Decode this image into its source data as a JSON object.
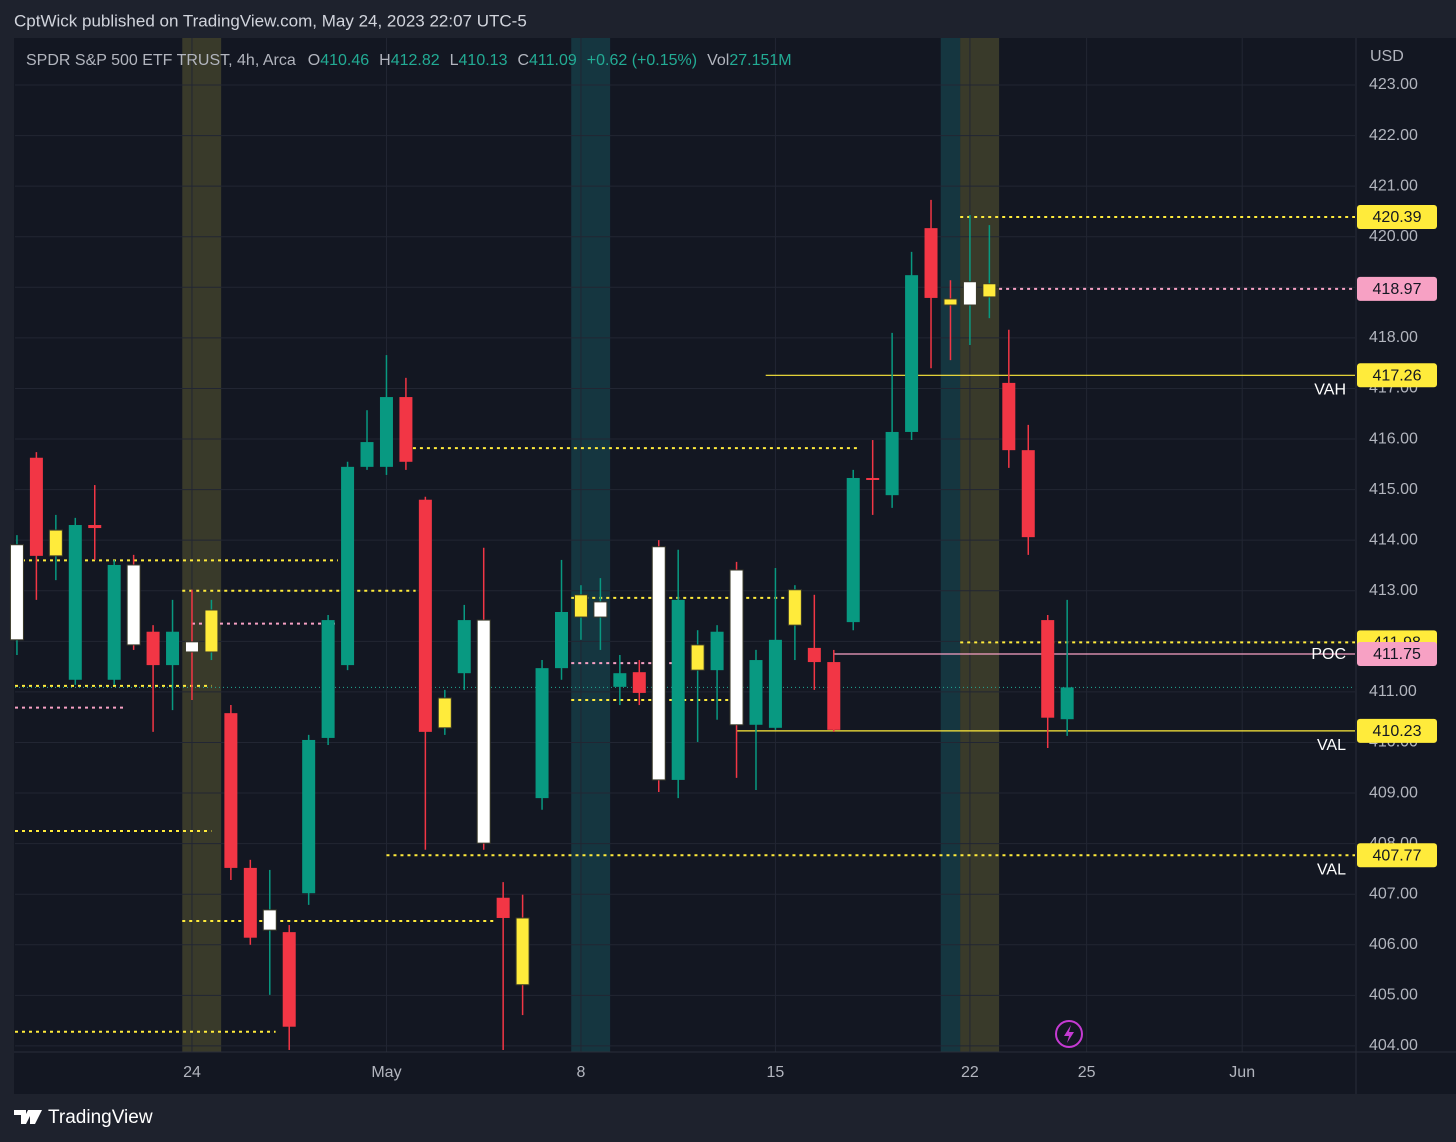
{
  "chart_data": {
    "type": "candlestick",
    "published": "CptWick published on TradingView.com, May 24, 2023 22:07 UTC-5",
    "symbol": "SPDR S&P 500 ETF TRUST, 4h, Arca",
    "fields": [
      {
        "label": "O",
        "value": 410.46
      },
      {
        "label": "H",
        "value": 412.82
      },
      {
        "label": "L",
        "value": 410.13
      },
      {
        "label": "C",
        "value": 411.09
      }
    ],
    "change": "+0.62 (+0.15%)",
    "volume_label": "Vol",
    "volume": "27.151M",
    "currency": "USD",
    "brand": "TradingView",
    "open": [
      412.03,
      415.63,
      413.69,
      411.24,
      414.3,
      411.24,
      413.51,
      412.19,
      411.53,
      411.99,
      411.79,
      410.58,
      407.52,
      406.29,
      406.25,
      407.02,
      410.09,
      411.53,
      415.45,
      415.45,
      416.83,
      414.8,
      410.29,
      411.37,
      412.42,
      406.93,
      406.53,
      408.9,
      411.47,
      412.48,
      412.48,
      411.1,
      411.39,
      413.87,
      409.26,
      411.43,
      411.43,
      413.41,
      410.35,
      410.29,
      412.32,
      411.87,
      411.59,
      412.38,
      415.23,
      414.89,
      416.14,
      420.17,
      418.77,
      418.65,
      418.81,
      417.11,
      415.78,
      412.42,
      410.46
    ],
    "high": [
      414.1,
      415.74,
      414.5,
      414.44,
      415.09,
      413.61,
      413.71,
      412.32,
      412.82,
      413.02,
      412.82,
      410.74,
      407.68,
      407.48,
      406.39,
      410.15,
      412.52,
      415.55,
      416.57,
      417.66,
      417.21,
      414.86,
      411.04,
      412.72,
      413.85,
      407.24,
      406.99,
      411.63,
      413.61,
      413.11,
      413.25,
      411.73,
      411.63,
      414.0,
      413.81,
      412.22,
      412.32,
      413.57,
      411.83,
      413.45,
      413.11,
      412.92,
      411.83,
      415.39,
      415.98,
      418.1,
      419.7,
      420.73,
      419.14,
      420.43,
      420.23,
      418.16,
      416.28,
      412.52,
      412.82
    ],
    "low": [
      411.73,
      412.82,
      413.21,
      411.14,
      413.61,
      411.14,
      411.83,
      410.21,
      410.64,
      410.84,
      411.63,
      407.28,
      406.0,
      405.01,
      403.92,
      406.79,
      409.95,
      411.43,
      415.39,
      415.29,
      415.39,
      407.88,
      410.15,
      411.04,
      407.88,
      403.92,
      404.61,
      408.67,
      411.24,
      412.03,
      411.83,
      410.74,
      410.74,
      409.02,
      408.9,
      410.01,
      410.45,
      409.3,
      409.06,
      410.25,
      411.63,
      411.04,
      410.21,
      412.22,
      414.5,
      414.64,
      415.98,
      417.4,
      417.56,
      417.86,
      418.39,
      415.43,
      413.71,
      409.89,
      410.13
    ],
    "close": [
      413.91,
      413.69,
      414.2,
      414.3,
      414.24,
      413.51,
      411.93,
      411.53,
      412.19,
      411.79,
      412.62,
      407.52,
      406.14,
      406.69,
      404.38,
      410.05,
      412.42,
      415.45,
      415.94,
      416.83,
      415.55,
      410.21,
      410.88,
      412.42,
      408.01,
      406.53,
      405.21,
      411.47,
      412.58,
      412.92,
      412.78,
      411.37,
      410.98,
      409.26,
      412.82,
      411.93,
      412.19,
      410.35,
      411.63,
      412.03,
      413.02,
      411.59,
      410.25,
      415.23,
      415.19,
      416.14,
      419.24,
      418.79,
      418.65,
      419.11,
      419.07,
      415.78,
      414.06,
      410.49,
      411.09
    ],
    "colors": [
      "#ffffff",
      "#f23645",
      "#ffeb3b",
      "#089981",
      "#f23645",
      "#089981",
      "#ffffff",
      "#f23645",
      "#089981",
      "#ffffff",
      "#ffeb3b",
      "#f23645",
      "#f23645",
      "#ffffff",
      "#f23645",
      "#089981",
      "#089981",
      "#089981",
      "#089981",
      "#089981",
      "#f23645",
      "#f23645",
      "#ffeb3b",
      "#089981",
      "#ffffff",
      "#f23645",
      "#ffeb3b",
      "#089981",
      "#089981",
      "#ffeb3b",
      "#ffffff",
      "#089981",
      "#f23645",
      "#ffffff",
      "#089981",
      "#ffeb3b",
      "#089981",
      "#ffffff",
      "#089981",
      "#089981",
      "#ffeb3b",
      "#f23645",
      "#f23645",
      "#089981",
      "#f23645",
      "#089981",
      "#089981",
      "#f23645",
      "#ffeb3b",
      "#ffffff",
      "#ffeb3b",
      "#f23645",
      "#f23645",
      "#f23645",
      "#089981"
    ],
    "up_color": "#089981",
    "down_color": "#f23645",
    "xlim": [
      -0.1,
      68.8
    ],
    "xticks": [
      {
        "value": 9,
        "label": "24"
      },
      {
        "value": 19,
        "label": "May"
      },
      {
        "value": 29,
        "label": "8"
      },
      {
        "value": 39,
        "label": "15"
      },
      {
        "value": 49,
        "label": "22"
      },
      {
        "value": 55,
        "label": "25"
      },
      {
        "value": 63,
        "label": "Jun"
      }
    ],
    "ylim": [
      403.88,
      423.89
    ],
    "yticks": [
      {
        "value": 404,
        "label": "404.00"
      },
      {
        "value": 405,
        "label": "405.00"
      },
      {
        "value": 406,
        "label": "406.00"
      },
      {
        "value": 407,
        "label": "407.00"
      },
      {
        "value": 408,
        "label": "408.00"
      },
      {
        "value": 409,
        "label": "409.00"
      },
      {
        "value": 410,
        "label": "410.00"
      },
      {
        "value": 411,
        "label": "411.00"
      },
      {
        "value": 412,
        "label": "412.00"
      },
      {
        "value": 413,
        "label": "413.00"
      },
      {
        "value": 414,
        "label": "414.00"
      },
      {
        "value": 415,
        "label": "415.00"
      },
      {
        "value": 416,
        "label": "416.00"
      },
      {
        "value": 417,
        "label": "417.00"
      },
      {
        "value": 418,
        "label": "418.00"
      },
      {
        "value": 419,
        "label": "419.00"
      },
      {
        "value": 420,
        "label": "420.00"
      },
      {
        "value": 421,
        "label": "421.00"
      },
      {
        "value": 422,
        "label": "422.00"
      },
      {
        "value": 423,
        "label": "423.00"
      }
    ],
    "grid": true,
    "bands": [
      {
        "from": 8.5,
        "to": 10.5,
        "color": "#807a3a"
      },
      {
        "from": 28.5,
        "to": 30.5,
        "color": "#1b6f78"
      },
      {
        "from": 47.5,
        "to": 48.5,
        "color": "#1b6f78"
      },
      {
        "from": 48.5,
        "to": 50.5,
        "color": "#807a3a"
      }
    ],
    "levels": [
      {
        "value": 420.39,
        "from": 48.5,
        "color": "#ffeb3b",
        "dashed": true
      },
      {
        "value": 418.97,
        "from": 50.5,
        "color": "#f7a1c4",
        "dashed": true
      },
      {
        "value": 417.26,
        "from": 38.5,
        "color": "#ffeb3b",
        "dashed": false,
        "note": "VAH",
        "note_pos": "below"
      },
      {
        "value": 411.98,
        "from": 48.5,
        "color": "#ffeb3b",
        "dashed": true
      },
      {
        "value": 411.75,
        "from": 42,
        "color": "#f7a1c4",
        "dashed": false,
        "note": "POC",
        "note_pos": "beside"
      },
      {
        "value": 410.23,
        "from": 37,
        "color": "#ffeb3b",
        "dashed": false,
        "note": "VAL",
        "note_pos": "below"
      },
      {
        "value": 407.77,
        "from": 19,
        "color": "#ffeb3b",
        "dashed": true,
        "note": "VAL",
        "note_pos": "below"
      }
    ],
    "segments": [
      {
        "value": 413.6,
        "from": -0.1,
        "to": 16.5,
        "color": "#ffeb3b"
      },
      {
        "value": 413.0,
        "from": 8.5,
        "to": 20.5,
        "color": "#ffeb3b"
      },
      {
        "value": 412.35,
        "from": 9,
        "to": 16.5,
        "color": "#f7a1c4"
      },
      {
        "value": 411.12,
        "from": -0.1,
        "to": 10,
        "color": "#ffeb3b"
      },
      {
        "value": 410.69,
        "from": -0.1,
        "to": 5.5,
        "color": "#f7a1c4"
      },
      {
        "value": 408.25,
        "from": -0.1,
        "to": 10,
        "color": "#ffeb3b"
      },
      {
        "value": 406.47,
        "from": 8.5,
        "to": 24.5,
        "color": "#ffeb3b"
      },
      {
        "value": 404.28,
        "from": -0.1,
        "to": 13.3,
        "color": "#ffeb3b"
      },
      {
        "value": 415.82,
        "from": 20,
        "to": 43.3,
        "color": "#ffeb3b"
      },
      {
        "value": 412.86,
        "from": 28.5,
        "to": 40,
        "color": "#ffeb3b"
      },
      {
        "value": 410.84,
        "from": 28.5,
        "to": 36.7,
        "color": "#ffeb3b"
      },
      {
        "value": 411.57,
        "from": 28.5,
        "to": 34,
        "color": "#f7a1c4"
      }
    ]
  }
}
